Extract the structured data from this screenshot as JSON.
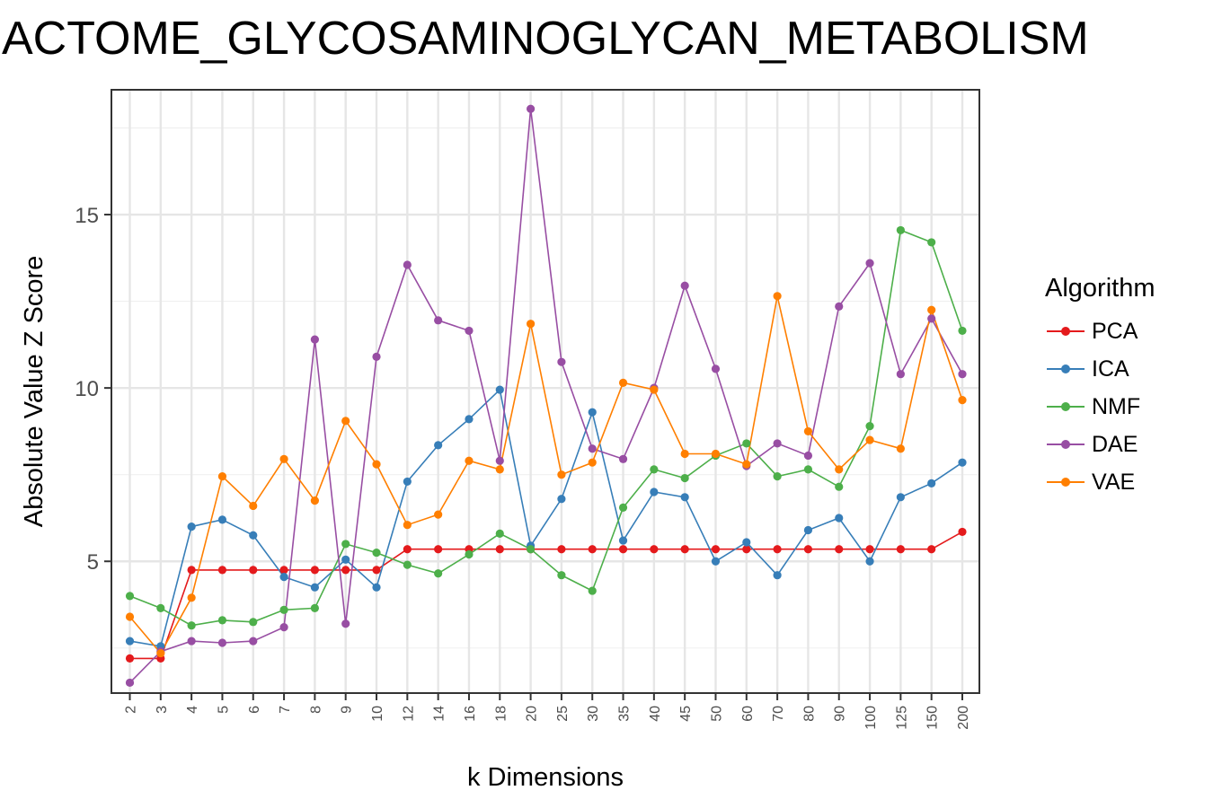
{
  "chart_data": {
    "type": "line",
    "title": "ACTOME_GLYCOSAMINOGLYCAN_METABOLISM",
    "xlabel": "k Dimensions",
    "ylabel": "Absolute Value Z Score",
    "categories": [
      "2",
      "3",
      "4",
      "5",
      "6",
      "7",
      "8",
      "9",
      "10",
      "12",
      "14",
      "16",
      "18",
      "20",
      "25",
      "30",
      "35",
      "40",
      "45",
      "50",
      "60",
      "70",
      "80",
      "90",
      "100",
      "125",
      "150",
      "200"
    ],
    "yticks": [
      5,
      10,
      15
    ],
    "ylim": [
      1.2,
      18.6
    ],
    "grid": true,
    "legend_title": "Algorithm",
    "legend_position": "right",
    "series": [
      {
        "name": "PCA",
        "color": "#E41A1C",
        "values": [
          2.2,
          2.2,
          4.75,
          4.75,
          4.75,
          4.75,
          4.75,
          4.75,
          4.75,
          5.35,
          5.35,
          5.35,
          5.35,
          5.35,
          5.35,
          5.35,
          5.35,
          5.35,
          5.35,
          5.35,
          5.35,
          5.35,
          5.35,
          5.35,
          5.35,
          5.35,
          5.35,
          5.85
        ]
      },
      {
        "name": "ICA",
        "color": "#377EB8",
        "values": [
          2.7,
          2.55,
          6.0,
          6.2,
          5.75,
          4.55,
          4.25,
          5.05,
          4.25,
          7.3,
          8.35,
          9.1,
          9.95,
          5.45,
          6.8,
          9.3,
          5.6,
          7.0,
          6.85,
          5.0,
          5.55,
          4.6,
          5.9,
          6.25,
          5.0,
          6.85,
          7.25,
          7.85
        ]
      },
      {
        "name": "NMF",
        "color": "#4DAF4A",
        "values": [
          4.0,
          3.65,
          3.15,
          3.3,
          3.25,
          3.6,
          3.65,
          5.5,
          5.25,
          4.9,
          4.65,
          5.2,
          5.8,
          5.35,
          4.6,
          4.15,
          6.55,
          7.65,
          7.4,
          8.05,
          8.4,
          7.45,
          7.65,
          7.15,
          8.9,
          14.55,
          14.2,
          11.65
        ]
      },
      {
        "name": "DAE",
        "color": "#984EA3",
        "values": [
          1.5,
          2.4,
          2.7,
          2.65,
          2.7,
          3.1,
          11.4,
          3.2,
          10.9,
          13.55,
          11.95,
          11.65,
          7.9,
          18.05,
          10.75,
          8.25,
          7.95,
          10.0,
          12.95,
          10.55,
          7.75,
          8.4,
          8.05,
          12.35,
          13.6,
          10.4,
          12.0,
          10.4
        ]
      },
      {
        "name": "VAE",
        "color": "#FF7F00",
        "values": [
          3.4,
          2.35,
          3.95,
          7.45,
          6.6,
          7.95,
          6.75,
          9.05,
          7.8,
          6.05,
          6.35,
          7.9,
          7.65,
          11.85,
          7.5,
          7.85,
          10.15,
          9.95,
          8.1,
          8.1,
          7.8,
          12.65,
          8.75,
          7.65,
          8.5,
          8.25,
          12.25,
          9.65
        ]
      }
    ]
  }
}
